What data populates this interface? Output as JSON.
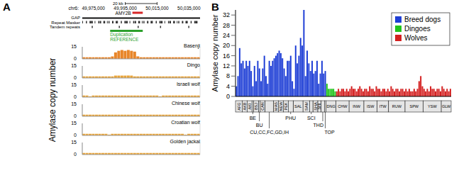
{
  "panel_labels": [
    "A",
    "B"
  ],
  "browser": {
    "chrom": "chr6:",
    "scale_label": "20 kb",
    "scale_bp": 20000,
    "row_labels": [
      "GAP",
      "Repeat Masker",
      "Tandem repeats"
    ],
    "gene": {
      "name": "AMY2B",
      "start": 49999500,
      "end": 50006000,
      "color": "#d62728"
    },
    "duplication": {
      "labels": [
        "Duplication",
        "REFERENCE"
      ],
      "start": 49985500,
      "end": 50006000,
      "color": "#2ca02c"
    }
  },
  "chart_data": [
    {
      "type": "bar",
      "ylabel": "Amylase copy number",
      "x": [
        49969000,
        49971000,
        49973000,
        49975000,
        49977000,
        49979000,
        49981000,
        49983000,
        49985000,
        49987000,
        49989000,
        49991000,
        49993000,
        49995000,
        49997000,
        49999000,
        50001000,
        50003000,
        50005000,
        50007000,
        50009000,
        50011000,
        50013000,
        50015000,
        50017000,
        50019000,
        50021000,
        50023000,
        50025000,
        50027000,
        50029000,
        50031000,
        50033000,
        50035000,
        50037000,
        50039000,
        50041000
      ],
      "xlim": [
        49968000,
        50042000
      ],
      "xticks": [
        {
          "value": 49975000,
          "label": "49,975,000"
        },
        {
          "value": 49995000,
          "label": "49,995,000"
        },
        {
          "value": 50015000,
          "label": "50,015,000"
        },
        {
          "value": 50035000,
          "label": "50,035,000"
        }
      ],
      "ylim": [
        0,
        15
      ],
      "yticks": [
        0,
        15
      ],
      "grid": true,
      "tick_labels": true,
      "series": [
        {
          "name": "Basenji",
          "color": "#e8862a",
          "values": [
            2,
            2,
            2,
            2,
            2,
            2,
            2,
            2,
            2,
            3,
            8,
            10,
            11,
            10,
            11,
            10,
            9,
            3,
            2,
            2,
            2,
            2,
            2,
            2,
            2,
            2,
            2,
            2,
            2,
            2,
            2,
            2,
            2,
            2,
            2,
            2,
            2
          ]
        },
        {
          "name": "Dingo",
          "color": "#e9a53a",
          "values": [
            2,
            2,
            2,
            2,
            2,
            2,
            2,
            2,
            2,
            2,
            3,
            3,
            3,
            3,
            3,
            3,
            2,
            2,
            2,
            2,
            2,
            2,
            2,
            2,
            2,
            2,
            2,
            2,
            2,
            2,
            2,
            2,
            2,
            2,
            2,
            2,
            2
          ]
        },
        {
          "name": "Israeli wolf",
          "color": "#e9a53a",
          "values": [
            2,
            2,
            1,
            2,
            2,
            2,
            2,
            2,
            2,
            2,
            2,
            2,
            2,
            2,
            2,
            2,
            2,
            2,
            2,
            2,
            2,
            2,
            2,
            2,
            1,
            2,
            2,
            2,
            2,
            2,
            2,
            2,
            2,
            2,
            2,
            2,
            2
          ]
        },
        {
          "name": "Chinese wolf",
          "color": "#e9a53a",
          "values": [
            2,
            2,
            2,
            2,
            2,
            2,
            2,
            2,
            2,
            2,
            2,
            2,
            2,
            2,
            2,
            2,
            2,
            2,
            2,
            2,
            2,
            2,
            2,
            2,
            2,
            2,
            2,
            2,
            2,
            2,
            2,
            2,
            2,
            2,
            2,
            2,
            2
          ]
        },
        {
          "name": "Croatian wolf",
          "color": "#e9a53a",
          "values": [
            2,
            2,
            2,
            2,
            2,
            2,
            2,
            2,
            1,
            2,
            2,
            2,
            2,
            2,
            2,
            2,
            2,
            2,
            2,
            2,
            2,
            2,
            2,
            2,
            2,
            2,
            2,
            2,
            2,
            2,
            2,
            2,
            1,
            2,
            2,
            2,
            2
          ]
        },
        {
          "name": "Golden jackal",
          "color": "#e9a53a",
          "values": [
            2,
            2,
            2,
            2,
            2,
            2,
            2,
            2,
            2,
            2,
            2,
            2,
            2,
            2,
            2,
            2,
            2,
            2,
            2,
            2,
            2,
            2,
            2,
            2,
            2,
            2,
            2,
            2,
            2,
            2,
            2,
            2,
            2,
            2,
            2,
            2,
            2
          ]
        }
      ]
    },
    {
      "type": "bar",
      "ylabel": "Amylase copy number",
      "ylim": [
        0,
        34
      ],
      "yticks": [
        0,
        4,
        8,
        12,
        16,
        20,
        24,
        28,
        32
      ],
      "grid": false,
      "legend": "upper right",
      "tick_labels": "y",
      "series": [
        {
          "name": "Breed dogs",
          "color": "#1f3fd6",
          "values": [
            4,
            8,
            19,
            13,
            14,
            11,
            14,
            12,
            14,
            10,
            4,
            12,
            6,
            14,
            11,
            6,
            11,
            16,
            8,
            5,
            14,
            12,
            14,
            15,
            16,
            17,
            18,
            17,
            15,
            11,
            8,
            14,
            14,
            16,
            6,
            3,
            20,
            13,
            16,
            23,
            20,
            34,
            8,
            18,
            13,
            10,
            14,
            9,
            10,
            14,
            5,
            9,
            14,
            9,
            10
          ]
        },
        {
          "name": "Dingoes",
          "color": "#22c41c",
          "values": [
            5,
            3,
            3,
            3,
            3,
            2
          ]
        },
        {
          "name": "Wolves",
          "color": "#d42020",
          "values": [
            2,
            3,
            2,
            3,
            3,
            2,
            3,
            2,
            3,
            4,
            3,
            3,
            2,
            3,
            4,
            3,
            2,
            3,
            3,
            2,
            4,
            3,
            3,
            2,
            4,
            3,
            3,
            2,
            3,
            3,
            2,
            3,
            2,
            4,
            3,
            2,
            3,
            3,
            2,
            3,
            3,
            2,
            3,
            2,
            3,
            2,
            2,
            3,
            2,
            3,
            6,
            8,
            4,
            3,
            2,
            3,
            2,
            4,
            3,
            3,
            2,
            3,
            3,
            2,
            4,
            3,
            2,
            3,
            2,
            3
          ]
        }
      ],
      "groups": [
        {
          "label": "AFG",
          "first": 0,
          "last": 3
        },
        {
          "label": "AKB",
          "first": 4,
          "last": 6
        },
        {
          "label": "AKI",
          "first": 7,
          "last": 9
        },
        {
          "label": "BSJ",
          "first": 11,
          "last": 13
        },
        {
          "label": "CAN",
          "first": 15,
          "last": 17
        },
        {
          "label": "MAS",
          "first": 23,
          "last": 25
        },
        {
          "label": "NEW",
          "first": 26,
          "last": 28
        },
        {
          "label": "PEK",
          "first": 29,
          "last": 31
        },
        {
          "label": "SAL",
          "first": 35,
          "last": 40
        },
        {
          "label": "SAM",
          "first": 41,
          "last": 44
        },
        {
          "label": "SHA",
          "first": 47,
          "last": 49
        },
        {
          "label": "SHI",
          "first": 50,
          "last": 51
        },
        {
          "label": "DNG",
          "first": 55,
          "last": 60
        },
        {
          "label": "CHW",
          "first": 61,
          "last": 68
        },
        {
          "label": "INW",
          "first": 69,
          "last": 77
        },
        {
          "label": "ISW",
          "first": 78,
          "last": 85
        },
        {
          "label": "ITW",
          "first": 86,
          "last": 92
        },
        {
          "label": "RUW",
          "first": 93,
          "last": 102
        },
        {
          "label": "SPW",
          "first": 103,
          "last": 113
        },
        {
          "label": "YSW",
          "first": 114,
          "last": 124
        },
        {
          "label": "GLW",
          "first": 125,
          "last": 130
        }
      ],
      "groups_below": [
        {
          "label": "BE",
          "first": 10,
          "last": 10
        },
        {
          "label": "BU",
          "first": 14,
          "last": 14
        },
        {
          "label": "CU,CC,FC,GD,IH",
          "first": 18,
          "last": 22
        },
        {
          "label": "PHU",
          "first": 32,
          "last": 34
        },
        {
          "label": "SCI",
          "first": 45,
          "last": 46
        },
        {
          "label": "THD",
          "first": 52,
          "last": 53
        },
        {
          "label": "TOP",
          "first": 54,
          "last": 54
        }
      ]
    }
  ]
}
